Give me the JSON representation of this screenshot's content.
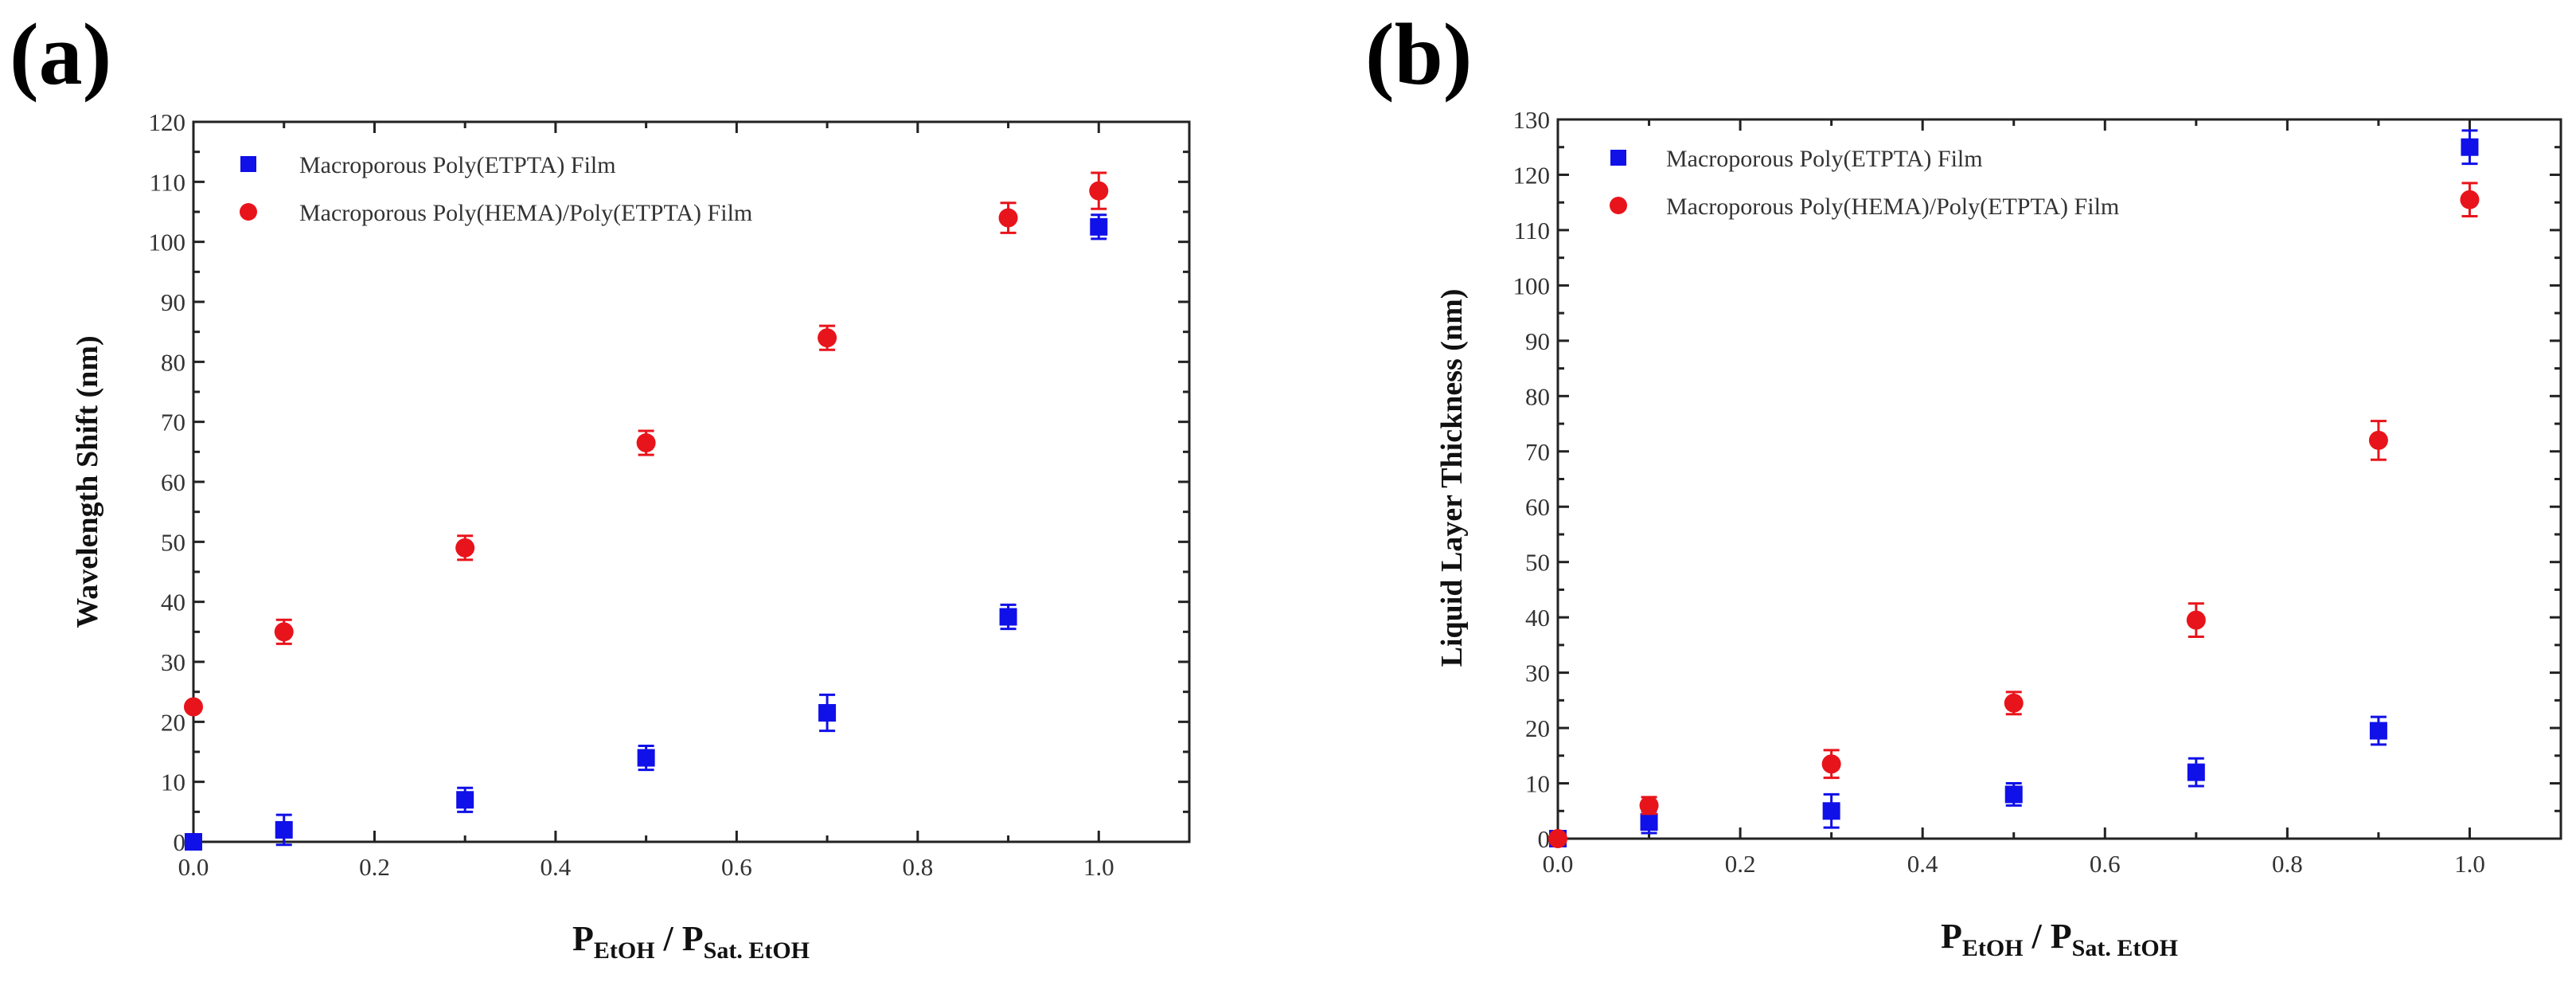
{
  "chart_data": [
    {
      "type": "scatter",
      "panel_label": "(a)",
      "ylabel": "Wavelength Shift (nm)",
      "xlabel_main": "P",
      "xlabel_sub1": "EtOH",
      "xlabel_sep": " / P",
      "xlabel_sub2": "Sat. EtOH",
      "xlim": [
        0,
        1.1
      ],
      "ylim": [
        0,
        120
      ],
      "xticks": [
        0.0,
        0.2,
        0.4,
        0.6,
        0.8,
        1.0
      ],
      "xtick_labels": [
        "0.0",
        "0.2",
        "0.4",
        "0.6",
        "0.8",
        "1.0"
      ],
      "yticks": [
        0,
        10,
        20,
        30,
        40,
        50,
        60,
        70,
        80,
        90,
        100,
        110,
        120
      ],
      "ytick_labels": [
        "0",
        "10",
        "20",
        "30",
        "40",
        "50",
        "60",
        "70",
        "80",
        "90",
        "100",
        "110",
        "120"
      ],
      "legend_position": "top-left",
      "series": [
        {
          "name": "Macroporous Poly(ETPTA) Film",
          "marker": "square",
          "color": "#1010e8",
          "x": [
            0.0,
            0.1,
            0.3,
            0.5,
            0.7,
            0.9,
            1.0
          ],
          "y": [
            0,
            2,
            7,
            14,
            21.5,
            37.5,
            102.5
          ],
          "err": [
            0,
            2.5,
            2,
            2,
            3,
            2,
            2
          ]
        },
        {
          "name": "Macroporous Poly(HEMA)/Poly(ETPTA) Film",
          "marker": "circle",
          "color": "#e8141b",
          "x": [
            0.0,
            0.1,
            0.3,
            0.5,
            0.7,
            0.9,
            1.0
          ],
          "y": [
            22.5,
            35,
            49,
            66.5,
            84,
            104,
            108.5
          ],
          "err": [
            0,
            2,
            2,
            2,
            2,
            2.5,
            3
          ]
        }
      ]
    },
    {
      "type": "scatter",
      "panel_label": "(b)",
      "ylabel": "Liquid Layer Thickness (nm)",
      "xlabel_main": "P",
      "xlabel_sub1": "EtOH",
      "xlabel_sep": " / P",
      "xlabel_sub2": "Sat. EtOH",
      "xlim": [
        0,
        1.1
      ],
      "ylim": [
        0,
        130
      ],
      "xticks": [
        0.0,
        0.2,
        0.4,
        0.6,
        0.8,
        1.0
      ],
      "xtick_labels": [
        "0.0",
        "0.2",
        "0.4",
        "0.6",
        "0.8",
        "1.0"
      ],
      "yticks": [
        0,
        10,
        20,
        30,
        40,
        50,
        60,
        70,
        80,
        90,
        100,
        110,
        120,
        130
      ],
      "ytick_labels": [
        "0",
        "10",
        "20",
        "30",
        "40",
        "50",
        "60",
        "70",
        "80",
        "90",
        "100",
        "110",
        "120",
        "130"
      ],
      "legend_position": "top-left",
      "series": [
        {
          "name": "Macroporous Poly(ETPTA) Film",
          "marker": "square",
          "color": "#1010e8",
          "x": [
            0.0,
            0.1,
            0.3,
            0.5,
            0.7,
            0.9,
            1.0
          ],
          "y": [
            0,
            3,
            5,
            8,
            12,
            19.5,
            125
          ],
          "err": [
            0,
            2,
            3,
            2,
            2.5,
            2.5,
            3
          ]
        },
        {
          "name": "Macroporous Poly(HEMA)/Poly(ETPTA) Film",
          "marker": "circle",
          "color": "#e8141b",
          "x": [
            0.0,
            0.1,
            0.3,
            0.5,
            0.7,
            0.9,
            1.0
          ],
          "y": [
            0,
            6,
            13.5,
            24.5,
            39.5,
            72,
            115.5
          ],
          "err": [
            0,
            1.5,
            2.5,
            2,
            3,
            3.5,
            3
          ]
        }
      ]
    }
  ]
}
